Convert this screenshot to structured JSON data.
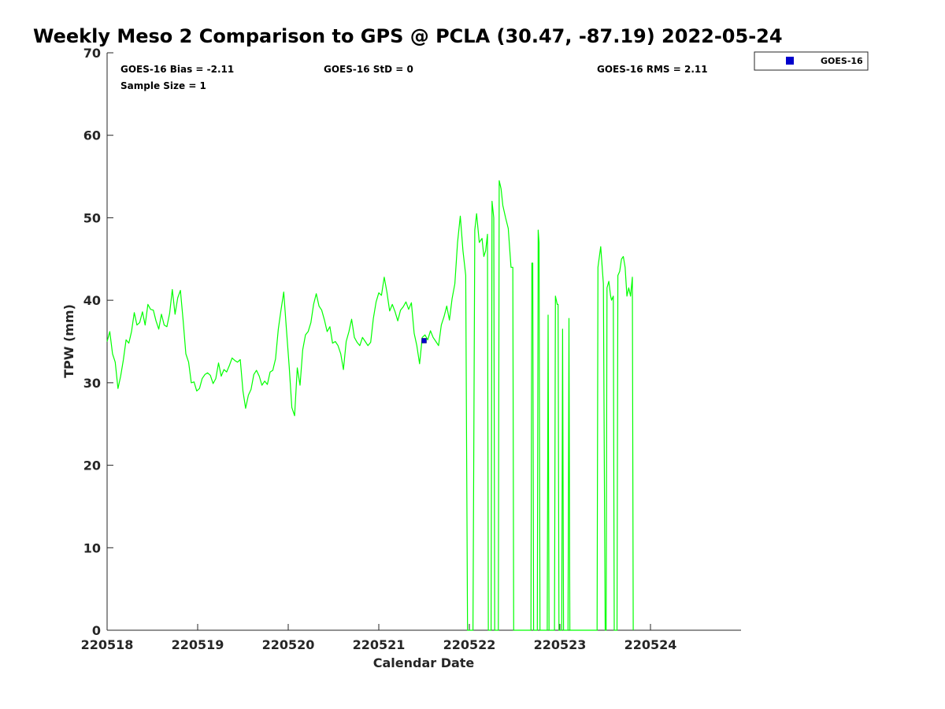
{
  "chart_data": {
    "type": "line",
    "title": "Weekly Meso 2 Comparison to GPS @ PCLA (30.47, -87.19) 2022-05-24",
    "xlabel": "Calendar Date",
    "ylabel": "TPW (mm)",
    "xlim": [
      220518,
      220525
    ],
    "ylim": [
      0,
      70
    ],
    "x_ticks": [
      "220518",
      "220519",
      "220520",
      "220521",
      "220522",
      "220523",
      "220524"
    ],
    "y_ticks": [
      "0",
      "10",
      "20",
      "30",
      "40",
      "50",
      "60",
      "70"
    ],
    "grid": false,
    "stats": {
      "bias": "GOES-16 Bias = -2.11",
      "std": "GOES-16 StD = 0",
      "rms": "GOES-16 RMS = 2.11",
      "sample": "Sample Size = 1"
    },
    "legend": {
      "position": "top-right (outside)",
      "label": "GOES-16"
    },
    "series": [
      {
        "name": "",
        "color": "#00ff00",
        "style": "line",
        "points": [
          [
            220518.0,
            35.0
          ],
          [
            220518.03,
            36.2
          ],
          [
            220518.06,
            33.5
          ],
          [
            220518.09,
            32.5
          ],
          [
            220518.12,
            29.3
          ],
          [
            220518.15,
            30.8
          ],
          [
            220518.18,
            32.8
          ],
          [
            220518.21,
            35.2
          ],
          [
            220518.24,
            34.8
          ],
          [
            220518.27,
            36.2
          ],
          [
            220518.3,
            38.5
          ],
          [
            220518.33,
            37.0
          ],
          [
            220518.36,
            37.3
          ],
          [
            220518.39,
            38.6
          ],
          [
            220518.42,
            37.0
          ],
          [
            220518.45,
            39.5
          ],
          [
            220518.48,
            38.9
          ],
          [
            220518.51,
            38.8
          ],
          [
            220518.54,
            37.5
          ],
          [
            220518.57,
            36.5
          ],
          [
            220518.6,
            38.3
          ],
          [
            220518.63,
            37.0
          ],
          [
            220518.66,
            36.8
          ],
          [
            220518.69,
            38.4
          ],
          [
            220518.72,
            41.3
          ],
          [
            220518.75,
            38.3
          ],
          [
            220518.78,
            40.3
          ],
          [
            220518.81,
            41.2
          ],
          [
            220518.84,
            37.5
          ],
          [
            220518.87,
            33.5
          ],
          [
            220518.9,
            32.5
          ],
          [
            220518.93,
            30.0
          ],
          [
            220518.96,
            30.1
          ],
          [
            220518.99,
            29.0
          ],
          [
            220519.02,
            29.3
          ],
          [
            220519.05,
            30.5
          ],
          [
            220519.08,
            31.0
          ],
          [
            220519.11,
            31.2
          ],
          [
            220519.14,
            30.9
          ],
          [
            220519.17,
            29.9
          ],
          [
            220519.2,
            30.5
          ],
          [
            220519.23,
            32.4
          ],
          [
            220519.26,
            30.8
          ],
          [
            220519.29,
            31.6
          ],
          [
            220519.32,
            31.3
          ],
          [
            220519.35,
            32.1
          ],
          [
            220519.38,
            33.0
          ],
          [
            220519.41,
            32.7
          ],
          [
            220519.44,
            32.5
          ],
          [
            220519.47,
            32.8
          ],
          [
            220519.5,
            29.0
          ],
          [
            220519.53,
            26.9
          ],
          [
            220519.56,
            28.5
          ],
          [
            220519.59,
            29.2
          ],
          [
            220519.62,
            31.0
          ],
          [
            220519.65,
            31.5
          ],
          [
            220519.68,
            30.8
          ],
          [
            220519.71,
            29.7
          ],
          [
            220519.74,
            30.2
          ],
          [
            220519.77,
            29.8
          ],
          [
            220519.8,
            31.3
          ],
          [
            220519.83,
            31.5
          ],
          [
            220519.86,
            32.9
          ],
          [
            220519.89,
            36.5
          ],
          [
            220519.92,
            38.8
          ],
          [
            220519.95,
            41.0
          ],
          [
            220519.98,
            36.5
          ],
          [
            220520.01,
            32.0
          ],
          [
            220520.04,
            27.0
          ],
          [
            220520.07,
            26.0
          ],
          [
            220520.1,
            31.8
          ],
          [
            220520.13,
            29.7
          ],
          [
            220520.16,
            34.0
          ],
          [
            220520.19,
            35.8
          ],
          [
            220520.22,
            36.2
          ],
          [
            220520.25,
            37.3
          ],
          [
            220520.28,
            39.5
          ],
          [
            220520.31,
            40.8
          ],
          [
            220520.34,
            39.3
          ],
          [
            220520.37,
            38.8
          ],
          [
            220520.4,
            37.6
          ],
          [
            220520.43,
            36.2
          ],
          [
            220520.46,
            36.8
          ],
          [
            220520.49,
            34.8
          ],
          [
            220520.52,
            35.0
          ],
          [
            220520.55,
            34.5
          ],
          [
            220520.58,
            33.5
          ],
          [
            220520.61,
            31.6
          ],
          [
            220520.64,
            35.0
          ],
          [
            220520.67,
            36.2
          ],
          [
            220520.7,
            37.7
          ],
          [
            220520.73,
            35.5
          ],
          [
            220520.76,
            34.9
          ],
          [
            220520.79,
            34.5
          ],
          [
            220520.82,
            35.5
          ],
          [
            220520.85,
            35.0
          ],
          [
            220520.88,
            34.5
          ],
          [
            220520.91,
            34.9
          ],
          [
            220520.94,
            37.8
          ],
          [
            220520.97,
            39.8
          ],
          [
            220521.0,
            40.9
          ],
          [
            220521.03,
            40.6
          ],
          [
            220521.06,
            42.8
          ],
          [
            220521.09,
            41.0
          ],
          [
            220521.12,
            38.7
          ],
          [
            220521.15,
            39.5
          ],
          [
            220521.18,
            38.6
          ],
          [
            220521.21,
            37.5
          ],
          [
            220521.24,
            38.8
          ],
          [
            220521.27,
            39.2
          ],
          [
            220521.3,
            39.8
          ],
          [
            220521.33,
            38.9
          ],
          [
            220521.36,
            39.7
          ],
          [
            220521.39,
            36.0
          ],
          [
            220521.42,
            34.5
          ],
          [
            220521.45,
            32.3
          ],
          [
            220521.48,
            35.5
          ],
          [
            220521.51,
            35.8
          ],
          [
            220521.54,
            35.2
          ],
          [
            220521.57,
            36.3
          ],
          [
            220521.6,
            35.5
          ],
          [
            220521.63,
            35.0
          ],
          [
            220521.66,
            34.5
          ],
          [
            220521.69,
            37.0
          ],
          [
            220521.72,
            38.0
          ],
          [
            220521.75,
            39.3
          ],
          [
            220521.78,
            37.6
          ],
          [
            220521.81,
            40.2
          ],
          [
            220521.84,
            42.0
          ],
          [
            220521.87,
            47.0
          ],
          [
            220521.9,
            50.2
          ],
          [
            220521.93,
            46.0
          ],
          [
            220521.96,
            43.0
          ],
          [
            220521.98,
            0
          ],
          [
            220522.04,
            0
          ],
          [
            220522.06,
            48.5
          ],
          [
            220522.08,
            50.5
          ],
          [
            220522.11,
            47.0
          ],
          [
            220522.14,
            47.5
          ],
          [
            220522.16,
            45.3
          ],
          [
            220522.18,
            46.0
          ],
          [
            220522.2,
            48.0
          ],
          [
            220522.21,
            0
          ],
          [
            220522.24,
            0
          ],
          [
            220522.25,
            52.0
          ],
          [
            220522.27,
            50.0
          ],
          [
            220522.28,
            0
          ],
          [
            220522.32,
            0
          ],
          [
            220522.33,
            54.5
          ],
          [
            220522.35,
            53.5
          ],
          [
            220522.37,
            51.5
          ],
          [
            220522.4,
            50.0
          ],
          [
            220522.43,
            48.7
          ],
          [
            220522.46,
            44.0
          ],
          [
            220522.48,
            44.0
          ],
          [
            220522.49,
            0
          ],
          [
            220522.68,
            0
          ],
          [
            220522.69,
            44.5
          ],
          [
            220522.7,
            44.5
          ],
          [
            220522.71,
            0
          ],
          [
            220522.75,
            0
          ],
          [
            220522.76,
            48.5
          ],
          [
            220522.77,
            47.0
          ],
          [
            220522.78,
            0
          ],
          [
            220522.86,
            0
          ],
          [
            220522.87,
            38.2
          ],
          [
            220522.88,
            0
          ],
          [
            220522.94,
            0
          ],
          [
            220522.95,
            40.5
          ],
          [
            220522.97,
            39.5
          ],
          [
            220522.98,
            39.5
          ],
          [
            220522.99,
            0
          ],
          [
            220523.02,
            0
          ],
          [
            220523.03,
            36.5
          ],
          [
            220523.04,
            0
          ],
          [
            220523.09,
            0
          ],
          [
            220523.1,
            37.8
          ],
          [
            220523.11,
            0
          ],
          [
            220523.41,
            0
          ],
          [
            220523.42,
            44.0
          ],
          [
            220523.45,
            46.5
          ],
          [
            220523.48,
            42.0
          ],
          [
            220523.5,
            0
          ],
          [
            220523.51,
            0
          ],
          [
            220523.52,
            41.5
          ],
          [
            220523.54,
            42.3
          ],
          [
            220523.56,
            40.5
          ],
          [
            220523.57,
            40.0
          ],
          [
            220523.59,
            40.5
          ],
          [
            220523.6,
            0
          ],
          [
            220523.63,
            0
          ],
          [
            220523.64,
            43.0
          ],
          [
            220523.66,
            43.5
          ],
          [
            220523.68,
            45.0
          ],
          [
            220523.7,
            45.3
          ],
          [
            220523.72,
            44.0
          ],
          [
            220523.74,
            40.5
          ],
          [
            220523.76,
            41.5
          ],
          [
            220523.78,
            40.5
          ],
          [
            220523.8,
            42.8
          ],
          [
            220523.81,
            0
          ]
        ]
      },
      {
        "name": "GOES-16",
        "color": "#0000cc",
        "style": "marker",
        "points": [
          [
            220521.5,
            35.1
          ]
        ]
      }
    ]
  }
}
